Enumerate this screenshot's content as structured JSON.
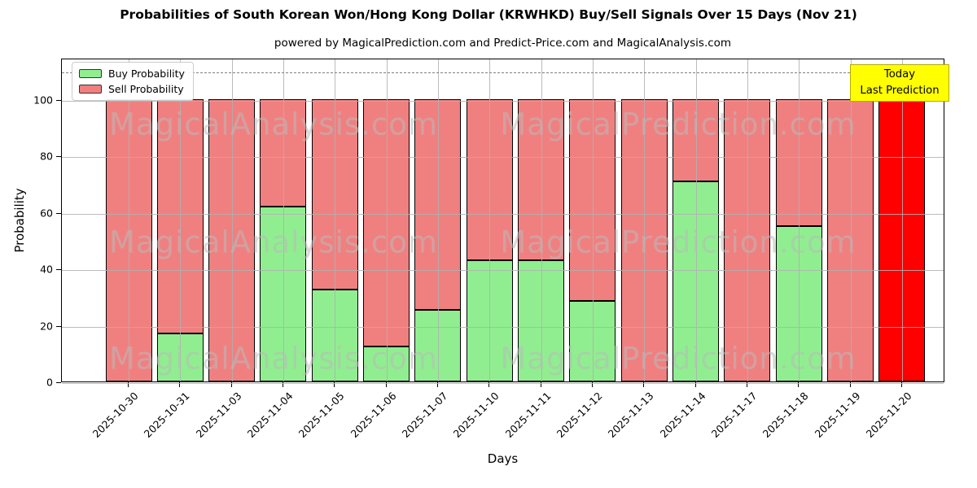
{
  "title": "Probabilities of South Korean Won/Hong Kong Dollar (KRWHKD) Buy/Sell Signals Over 15 Days (Nov 21)",
  "subtitle": "powered by MagicalPrediction.com and Predict-Price.com and MagicalAnalysis.com",
  "axes": {
    "xlabel": "Days",
    "ylabel": "Probability"
  },
  "legend": {
    "items": [
      {
        "label": "Buy Probability",
        "color": "#90ee90"
      },
      {
        "label": "Sell Probability",
        "color": "#f08080"
      }
    ]
  },
  "today_box": {
    "line1": "Today",
    "line2": "Last Prediction",
    "bg_color": "#ffff00",
    "border_color": "#b3ab00"
  },
  "watermarks": {
    "left_text": "MagicalAnalysis.com",
    "right_text": "MagicalPrediction.com"
  },
  "colors": {
    "buy": "#90ee90",
    "sell": "#f08080",
    "today_bar": "#ff0000",
    "bar_edge": "#000000",
    "grid": "#b0b0b0",
    "dashed_line": "#7f7f7f",
    "watermark": "#b9b9b9",
    "annotation_bg": "#ffff00"
  },
  "chart_data": {
    "type": "bar",
    "stacked": true,
    "title": "Probabilities of South Korean Won/Hong Kong Dollar (KRWHKD) Buy/Sell Signals Over 15 Days (Nov 21)",
    "xlabel": "Days",
    "ylabel": "Probability",
    "categories": [
      "2025-10-30",
      "2025-10-31",
      "2025-11-03",
      "2025-11-04",
      "2025-11-05",
      "2025-11-06",
      "2025-11-07",
      "2025-11-10",
      "2025-11-11",
      "2025-11-12",
      "2025-11-13",
      "2025-11-14",
      "2025-11-17",
      "2025-11-18",
      "2025-11-19",
      "2025-11-20"
    ],
    "series": [
      {
        "name": "Buy Probability",
        "color": "#90ee90",
        "values": [
          0,
          17,
          0,
          62,
          32.5,
          12.5,
          25.5,
          43,
          43,
          28.5,
          0,
          71,
          0,
          55,
          0,
          0
        ]
      },
      {
        "name": "Sell Probability",
        "color": "#f08080",
        "values": [
          100,
          83,
          100,
          38,
          67.5,
          87.5,
          74.5,
          57,
          57,
          71.5,
          100,
          29,
          100,
          45,
          100,
          100
        ]
      }
    ],
    "highlight_bar": {
      "index": 15,
      "category": "2025-11-20",
      "color": "#ff0000",
      "meaning": "Today / Last Prediction"
    },
    "yticks": [
      0,
      20,
      40,
      60,
      80,
      100
    ],
    "ylim": [
      0,
      115
    ],
    "dashed_line_y": 110,
    "grid": true,
    "legend_position": "upper left"
  }
}
